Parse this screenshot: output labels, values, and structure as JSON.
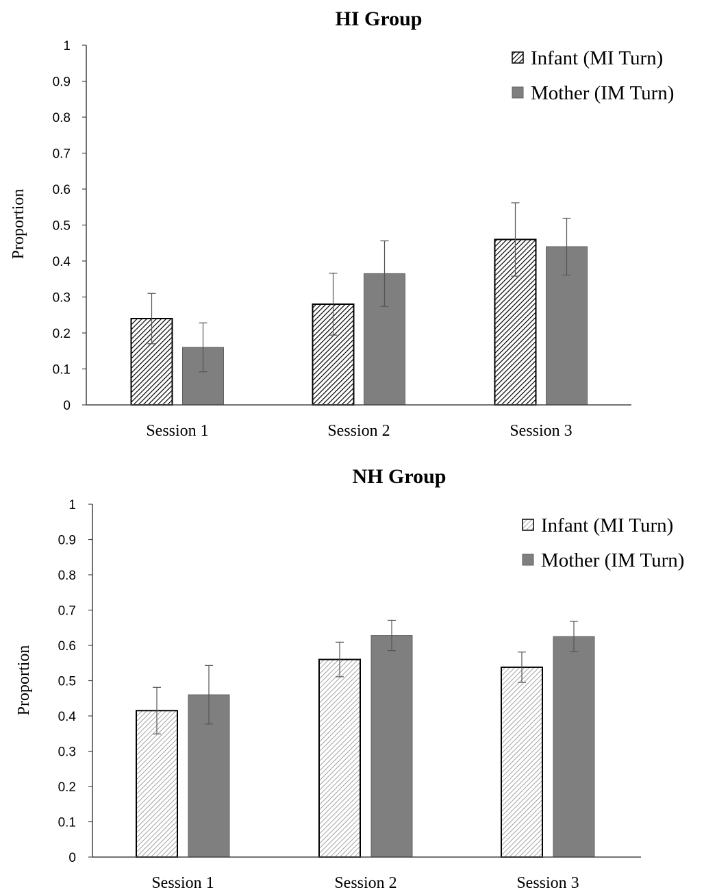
{
  "chart_data": [
    {
      "type": "bar",
      "title": "HI Group",
      "ylabel": "Proportion",
      "xlabel": "",
      "ylim": [
        0,
        1
      ],
      "yticks": [
        "0",
        "0.1",
        "0.2",
        "0.3",
        "0.4",
        "0.5",
        "0.6",
        "0.7",
        "0.8",
        "0.9",
        "1"
      ],
      "categories": [
        "Session 1",
        "Session 2",
        "Session 3"
      ],
      "legend_position": "top-right",
      "grid": false,
      "series": [
        {
          "name": "Infant (MI Turn)",
          "style": "hatched",
          "color": "#ffffff",
          "values": [
            0.24,
            0.28,
            0.46
          ],
          "error": [
            0.07,
            0.086,
            0.102
          ]
        },
        {
          "name": "Mother (IM Turn)",
          "style": "solid",
          "color": "#7f7f7f",
          "values": [
            0.16,
            0.365,
            0.44
          ],
          "error": [
            0.068,
            0.091,
            0.079
          ]
        }
      ]
    },
    {
      "type": "bar",
      "title": "NH Group",
      "ylabel": "Proportion",
      "xlabel": "",
      "ylim": [
        0,
        1
      ],
      "yticks": [
        "0",
        "0.1",
        "0.2",
        "0.3",
        "0.4",
        "0.5",
        "0.6",
        "0.7",
        "0.8",
        "0.9",
        "1"
      ],
      "categories": [
        "Session 1",
        "Session 2",
        "Session 3"
      ],
      "legend_position": "top-right",
      "grid": false,
      "series": [
        {
          "name": "Infant (MI Turn)",
          "style": "hatched-light",
          "color": "#ffffff",
          "values": [
            0.415,
            0.56,
            0.538
          ],
          "error": [
            0.066,
            0.049,
            0.043
          ]
        },
        {
          "name": "Mother (IM Turn)",
          "style": "solid",
          "color": "#7f7f7f",
          "values": [
            0.46,
            0.628,
            0.625
          ],
          "error": [
            0.083,
            0.043,
            0.043
          ]
        }
      ]
    }
  ]
}
